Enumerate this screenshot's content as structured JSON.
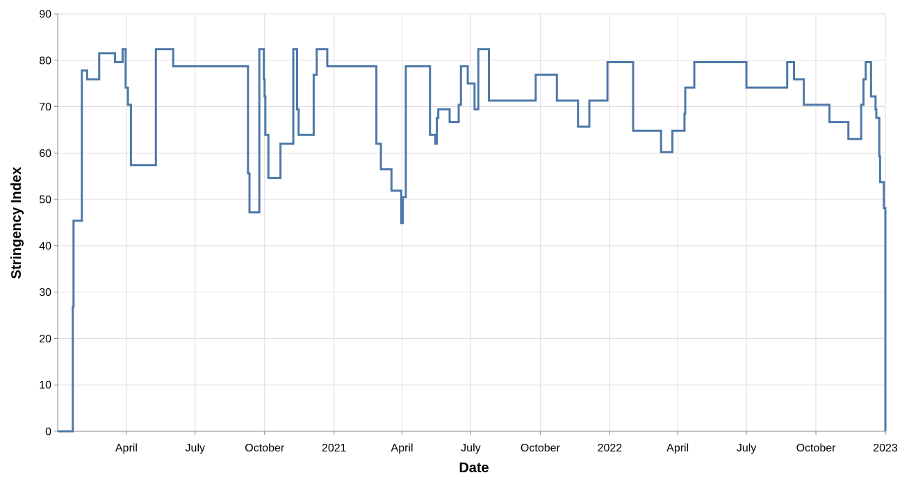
{
  "chart_data": {
    "type": "line",
    "interpolation": "step",
    "xlabel": "Date",
    "ylabel": "Stringency Index",
    "xlim": [
      "2020-01-01",
      "2023-01-01"
    ],
    "ylim": [
      0,
      90
    ],
    "grid": true,
    "legend": "none",
    "colors": {
      "line": "#4c78a8",
      "grid": "#dddddd",
      "axis": "#888888"
    },
    "y_ticks": [
      0,
      10,
      20,
      30,
      40,
      50,
      60,
      70,
      80,
      90
    ],
    "x_ticks": [
      {
        "date": "2020-04-01",
        "label": "April"
      },
      {
        "date": "2020-07-01",
        "label": "July"
      },
      {
        "date": "2020-10-01",
        "label": "October"
      },
      {
        "date": "2021-01-01",
        "label": "2021"
      },
      {
        "date": "2021-04-01",
        "label": "April"
      },
      {
        "date": "2021-07-01",
        "label": "July"
      },
      {
        "date": "2021-10-01",
        "label": "October"
      },
      {
        "date": "2022-01-01",
        "label": "2022"
      },
      {
        "date": "2022-04-01",
        "label": "April"
      },
      {
        "date": "2022-07-01",
        "label": "July"
      },
      {
        "date": "2022-10-01",
        "label": "October"
      },
      {
        "date": "2023-01-01",
        "label": "2023"
      }
    ],
    "series": [
      {
        "points": [
          [
            "2020-01-01",
            0
          ],
          [
            "2020-01-21",
            26.9
          ],
          [
            "2020-01-22",
            45.4
          ],
          [
            "2020-02-02",
            77.8
          ],
          [
            "2020-02-09",
            75.9
          ],
          [
            "2020-02-25",
            81.5
          ],
          [
            "2020-03-17",
            79.6
          ],
          [
            "2020-03-27",
            82.4
          ],
          [
            "2020-03-31",
            74.1
          ],
          [
            "2020-04-03",
            70.4
          ],
          [
            "2020-04-07",
            57.4
          ],
          [
            "2020-05-10",
            82.4
          ],
          [
            "2020-06-02",
            78.7
          ],
          [
            "2020-09-09",
            55.6
          ],
          [
            "2020-09-11",
            47.2
          ],
          [
            "2020-09-24",
            82.4
          ],
          [
            "2020-09-30",
            75.9
          ],
          [
            "2020-10-01",
            72.2
          ],
          [
            "2020-10-02",
            63.9
          ],
          [
            "2020-10-06",
            54.6
          ],
          [
            "2020-10-22",
            62.0
          ],
          [
            "2020-11-08",
            82.4
          ],
          [
            "2020-11-13",
            69.4
          ],
          [
            "2020-11-15",
            63.9
          ],
          [
            "2020-12-05",
            76.9
          ],
          [
            "2020-12-09",
            82.4
          ],
          [
            "2020-12-23",
            78.7
          ],
          [
            "2021-02-26",
            62.0
          ],
          [
            "2021-03-04",
            56.5
          ],
          [
            "2021-03-18",
            51.9
          ],
          [
            "2021-03-31",
            44.9
          ],
          [
            "2021-04-02",
            50.5
          ],
          [
            "2021-04-06",
            78.7
          ],
          [
            "2021-05-08",
            63.9
          ],
          [
            "2021-05-15",
            62.0
          ],
          [
            "2021-05-17",
            67.6
          ],
          [
            "2021-05-19",
            69.4
          ],
          [
            "2021-06-03",
            66.7
          ],
          [
            "2021-06-15",
            70.4
          ],
          [
            "2021-06-18",
            78.7
          ],
          [
            "2021-06-27",
            75.0
          ],
          [
            "2021-07-06",
            69.4
          ],
          [
            "2021-07-11",
            82.4
          ],
          [
            "2021-07-25",
            71.3
          ],
          [
            "2021-09-25",
            76.9
          ],
          [
            "2021-10-23",
            71.3
          ],
          [
            "2021-11-20",
            65.7
          ],
          [
            "2021-12-05",
            71.3
          ],
          [
            "2021-12-29",
            79.6
          ],
          [
            "2022-02-01",
            64.8
          ],
          [
            "2022-03-10",
            60.2
          ],
          [
            "2022-03-25",
            64.8
          ],
          [
            "2022-04-10",
            68.5
          ],
          [
            "2022-04-11",
            74.1
          ],
          [
            "2022-04-23",
            79.6
          ],
          [
            "2022-07-01",
            74.1
          ],
          [
            "2022-08-24",
            79.6
          ],
          [
            "2022-09-02",
            75.9
          ],
          [
            "2022-09-15",
            70.4
          ],
          [
            "2022-10-19",
            66.7
          ],
          [
            "2022-11-13",
            63.0
          ],
          [
            "2022-11-30",
            70.4
          ],
          [
            "2022-12-03",
            75.9
          ],
          [
            "2022-12-06",
            79.6
          ],
          [
            "2022-12-13",
            72.2
          ],
          [
            "2022-12-19",
            69.4
          ],
          [
            "2022-12-20",
            67.6
          ],
          [
            "2022-12-24",
            59.3
          ],
          [
            "2022-12-25",
            53.7
          ],
          [
            "2022-12-30",
            48.1
          ],
          [
            "2023-01-14",
            0
          ],
          [
            "2023-01-17",
            0
          ]
        ]
      }
    ]
  }
}
